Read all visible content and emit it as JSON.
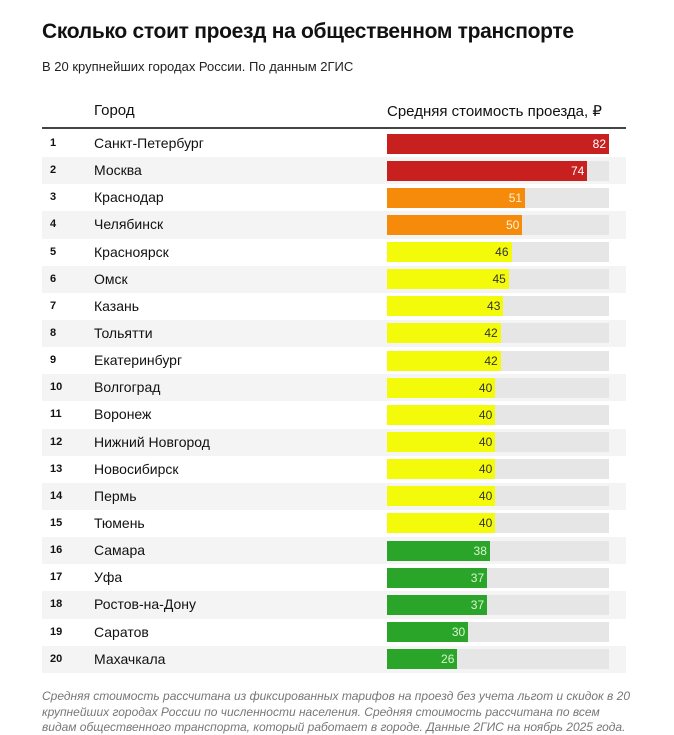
{
  "title": "Сколько стоит проезд на общественном транспорте",
  "subtitle": "В 20 крупнейших городах России. По данным 2ГИС",
  "note": "Средняя стоимость рассчитана из фиксированных тарифов на проезд без учета льгот и скидок в 20 крупнейших городах России по численности населения. Средняя стоимость рассчитана по всем видам общественного транспорта, который работает в городе. Данные 2ГИС на ноябрь 2025 года.",
  "colors": {
    "red": "#c8201f",
    "orange": "#f68b0b",
    "yellow": "#f4fb0a",
    "green": "#2aa52a",
    "track": "#e6e6e6"
  },
  "chart_data": {
    "type": "table",
    "columns": [
      "Город",
      "Средняя стоимость проезда, ₽"
    ],
    "xlim": [
      0,
      82
    ],
    "rows": [
      {
        "rank": "1",
        "city": "Санкт-Петербург",
        "value": 82,
        "color": "red"
      },
      {
        "rank": "2",
        "city": "Москва",
        "value": 74,
        "color": "red"
      },
      {
        "rank": "3",
        "city": "Краснодар",
        "value": 51,
        "color": "orange"
      },
      {
        "rank": "4",
        "city": "Челябинск",
        "value": 50,
        "color": "orange"
      },
      {
        "rank": "5",
        "city": "Красноярск",
        "value": 46,
        "color": "yellow"
      },
      {
        "rank": "6",
        "city": "Омск",
        "value": 45,
        "color": "yellow"
      },
      {
        "rank": "7",
        "city": "Казань",
        "value": 43,
        "color": "yellow"
      },
      {
        "rank": "8",
        "city": "Тольятти",
        "value": 42,
        "color": "yellow"
      },
      {
        "rank": "9",
        "city": "Екатеринбург",
        "value": 42,
        "color": "yellow"
      },
      {
        "rank": "10",
        "city": "Волгоград",
        "value": 40,
        "color": "yellow"
      },
      {
        "rank": "11",
        "city": "Воронеж",
        "value": 40,
        "color": "yellow"
      },
      {
        "rank": "12",
        "city": "Нижний Новгород",
        "value": 40,
        "color": "yellow"
      },
      {
        "rank": "13",
        "city": "Новосибирск",
        "value": 40,
        "color": "yellow"
      },
      {
        "rank": "14",
        "city": "Пермь",
        "value": 40,
        "color": "yellow"
      },
      {
        "rank": "15",
        "city": "Тюмень",
        "value": 40,
        "color": "yellow"
      },
      {
        "rank": "16",
        "city": "Самара",
        "value": 38,
        "color": "green"
      },
      {
        "rank": "17",
        "city": "Уфа",
        "value": 37,
        "color": "green"
      },
      {
        "rank": "18",
        "city": "Ростов-на-Дону",
        "value": 37,
        "color": "green"
      },
      {
        "rank": "19",
        "city": "Саратов",
        "value": 30,
        "color": "green"
      },
      {
        "rank": "20",
        "city": "Махачкала",
        "value": 26,
        "color": "green"
      }
    ]
  }
}
